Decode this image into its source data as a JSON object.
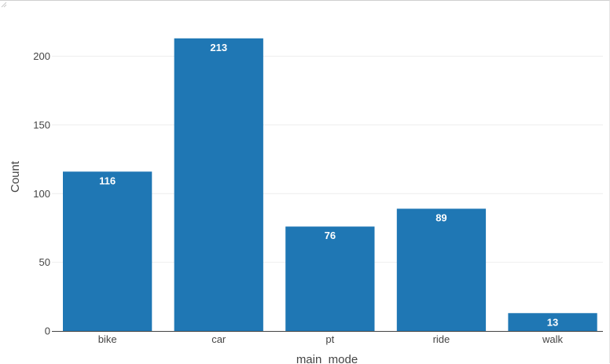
{
  "chart_data": {
    "type": "bar",
    "categories": [
      "bike",
      "car",
      "pt",
      "ride",
      "walk"
    ],
    "values": [
      116,
      213,
      76,
      89,
      13
    ],
    "data_labels": [
      "116",
      "213",
      "76",
      "89",
      "13"
    ],
    "xlabel": "main  mode",
    "ylabel": "Count",
    "ylim": [
      0,
      220
    ],
    "yticks": [
      0,
      50,
      100,
      150,
      200
    ],
    "grid": true,
    "bar_color": "#1f77b4",
    "grid_color": "#eeeeee",
    "axis_color": "#444444"
  }
}
